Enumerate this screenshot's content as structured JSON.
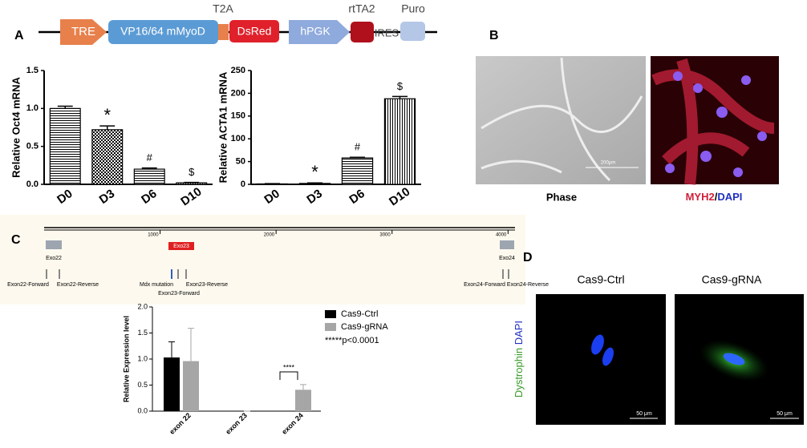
{
  "panel_labels": [
    "A",
    "B",
    "C",
    "D"
  ],
  "construct": {
    "labels": [
      "TRE",
      "VP16/64 mMyoD",
      "T2A",
      "DsRed",
      "hPGK",
      "rtTA2",
      "IRES",
      "Puro"
    ]
  },
  "chart_data": [
    {
      "type": "bar",
      "ylabel": "Relative Oct4 mRNA",
      "categories": [
        "D0",
        "D3",
        "D6",
        "D10"
      ],
      "values": [
        1.0,
        0.72,
        0.2,
        0.02
      ],
      "errors": [
        0.03,
        0.05,
        0.015,
        0.005
      ],
      "annotations": [
        null,
        "*",
        "#",
        "$"
      ],
      "color": "#ffffff",
      "ylim": [
        0,
        1.5
      ],
      "yticks": [
        {
          "value": 0,
          "label": "0.0"
        },
        {
          "value": 0.5,
          "label": "0.5"
        },
        {
          "value": 1,
          "label": "1.0"
        },
        {
          "value": 1.5,
          "label": "1.5"
        }
      ]
    },
    {
      "type": "bar",
      "ylabel": "Relative ACTA1 mRNA",
      "categories": [
        "D0",
        "D3",
        "D6",
        "D10"
      ],
      "values": [
        1,
        2,
        58,
        188
      ],
      "errors": [
        0.5,
        1,
        1.5,
        5
      ],
      "annotations": [
        null,
        "*",
        "#",
        "$"
      ],
      "color": "#ffffff",
      "ylim": [
        0,
        250
      ],
      "yticks": [
        0,
        50,
        100,
        150,
        200,
        250
      ]
    },
    {
      "type": "grouped-bar",
      "ylabel": "Relative Expression level",
      "categories": [
        "exon 22",
        "exon 23",
        "exon 24"
      ],
      "series": [
        {
          "name": "Cas9-Ctrl",
          "color": "#000000",
          "values": [
            1.03,
            0,
            0
          ],
          "errors": [
            0.3,
            0,
            0
          ]
        },
        {
          "name": "Cas9-gRNA",
          "color": "#a6a6a6",
          "values": [
            0.96,
            0,
            0.41
          ],
          "errors": [
            0.63,
            0,
            0.1
          ]
        }
      ],
      "annotation": "****",
      "note": "*****p<0.0001",
      "ylim": [
        0,
        2
      ],
      "yticks": [
        {
          "value": 0,
          "label": "0.0"
        },
        {
          "value": 0.5,
          "label": "0.5"
        },
        {
          "value": 1,
          "label": "1.0"
        },
        {
          "value": 1.5,
          "label": "1.5"
        },
        {
          "value": 2,
          "label": "2.0"
        }
      ]
    }
  ],
  "images": {
    "phase": "Phase",
    "scale_phase": "200μm",
    "stain_a": "MYH2",
    "sep": "/",
    "stain_b": "DAPI"
  },
  "genome_map": {
    "xlim": [
      0,
      4060
    ],
    "ticks": [
      1000,
      2000,
      3000,
      4000
    ],
    "exons": [
      "Exo22",
      "Exo23",
      "Exo24"
    ],
    "primers": [
      "Exon22-Forward",
      "Exon22-Reverse",
      "Mdx mutation",
      "Exon23-Forward",
      "Exon23-Reverse",
      "Exon24-Forward",
      "Exon24-Reverse"
    ]
  },
  "panel_d": {
    "conditions": [
      "Cas9-Ctrl",
      "Cas9-gRNA"
    ],
    "stain_a": "Dystrophin",
    "stain_b": "DAPI",
    "scale": "50 μm"
  }
}
